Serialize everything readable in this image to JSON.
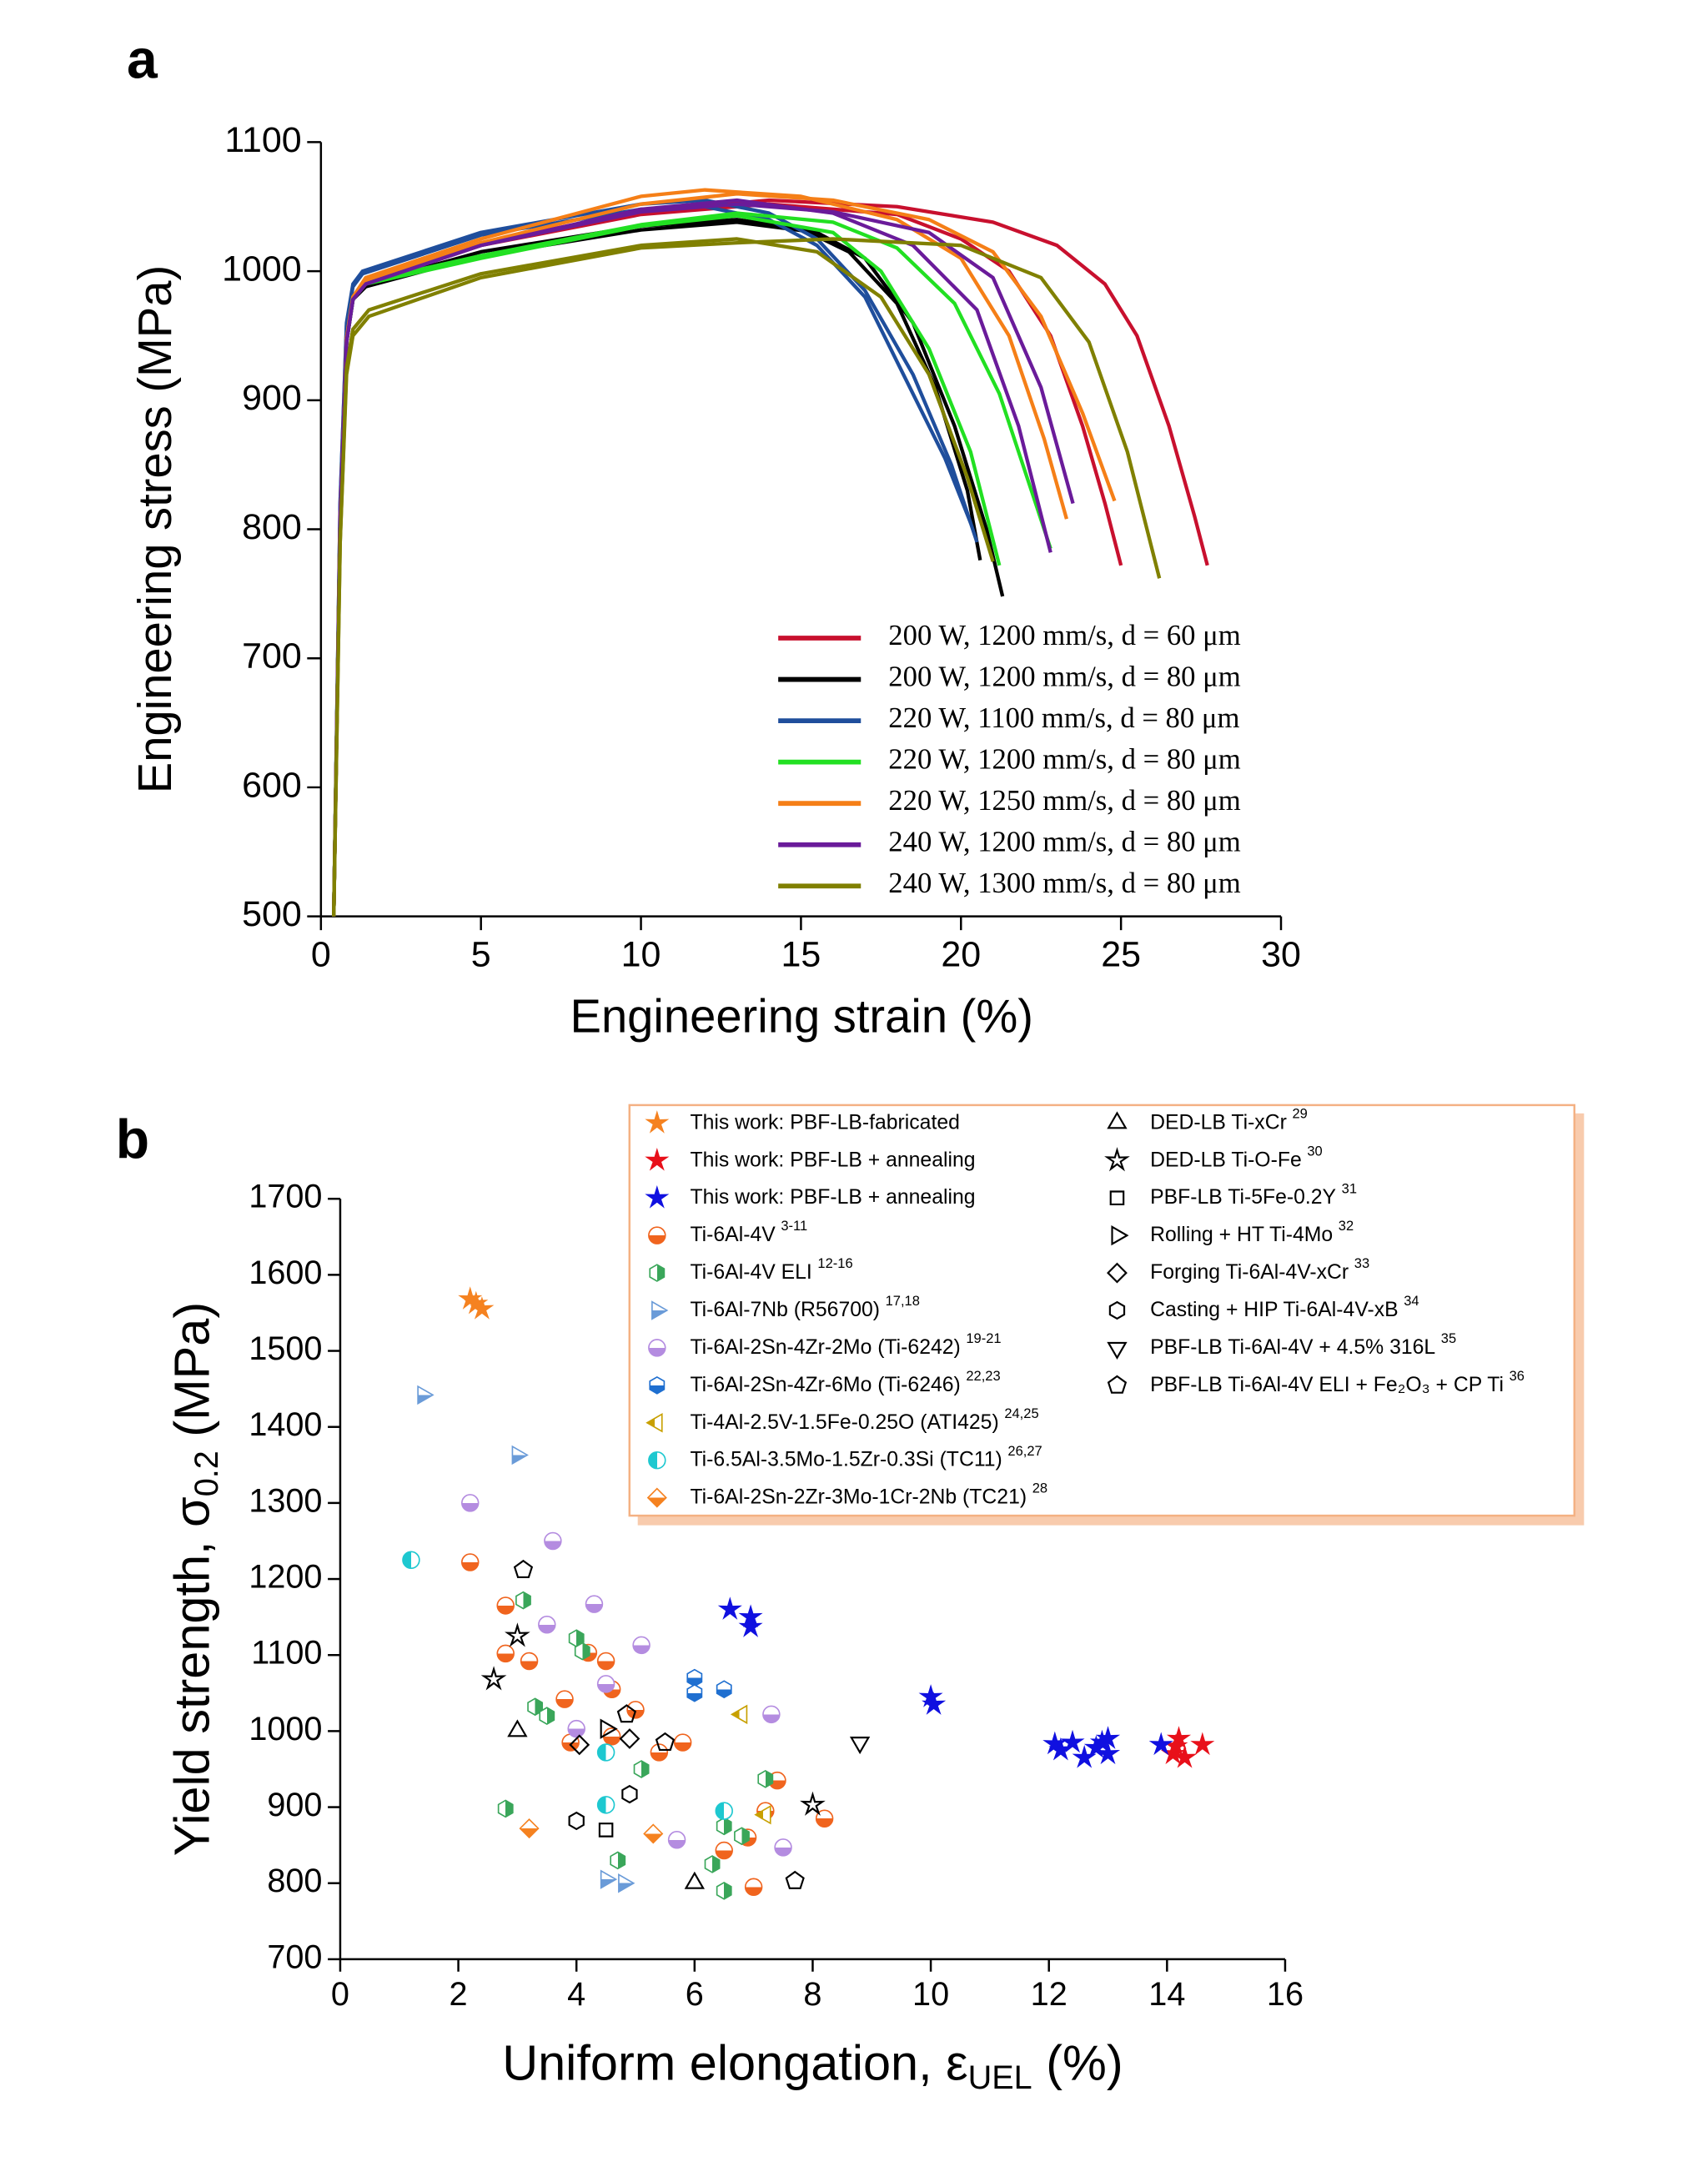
{
  "chart_data": [
    {
      "type": "line",
      "label": "a",
      "xlabel": "Engineering strain (%)",
      "ylabel": "Engineering stress (MPa)",
      "xlim": [
        0,
        30
      ],
      "ylim": [
        500,
        1100
      ],
      "xticks": [
        0,
        5,
        10,
        15,
        20,
        25,
        30
      ],
      "yticks": [
        500,
        600,
        700,
        800,
        900,
        1000,
        1100
      ],
      "series": [
        {
          "name": "200 W, 1200 mm/s, d = 60 μm",
          "color": "#c8102e",
          "curves": [
            {
              "x": [
                0.4,
                0.6,
                0.8,
                1.0,
                1.4,
                5,
                10,
                14,
                18,
                21,
                23,
                24.5,
                25.5,
                26.5,
                27.3,
                27.7
              ],
              "values": [
                500,
                810,
                945,
                978,
                992,
                1022,
                1046,
                1055,
                1050,
                1038,
                1020,
                990,
                950,
                880,
                810,
                772
              ]
            },
            {
              "x": [
                0.4,
                0.6,
                0.8,
                1.0,
                1.4,
                5,
                10,
                14,
                18,
                20,
                21.5,
                22.8,
                23.8,
                24.5,
                25.0
              ],
              "values": [
                500,
                810,
                945,
                978,
                990,
                1020,
                1044,
                1052,
                1044,
                1025,
                1000,
                950,
                880,
                820,
                772
              ]
            }
          ]
        },
        {
          "name": "200 W, 1200 mm/s, d = 80 μm",
          "color": "#000000",
          "curves": [
            {
              "x": [
                0.4,
                0.6,
                0.8,
                1.0,
                1.4,
                5,
                10,
                13,
                15,
                16.5,
                18,
                19.2,
                20.2,
                20.6
              ],
              "values": [
                500,
                810,
                945,
                978,
                990,
                1015,
                1035,
                1040,
                1033,
                1015,
                975,
                910,
                830,
                776
              ]
            },
            {
              "x": [
                0.4,
                0.6,
                0.8,
                1.0,
                1.4,
                5,
                10,
                13,
                15.5,
                17,
                18.5,
                19.8,
                20.8,
                21.3
              ],
              "values": [
                500,
                810,
                945,
                978,
                988,
                1012,
                1032,
                1038,
                1030,
                1010,
                960,
                880,
                800,
                748
              ]
            }
          ]
        },
        {
          "name": "220 W, 1100 mm/s, d = 80 μm",
          "color": "#1f4e9c",
          "curves": [
            {
              "x": [
                0.4,
                0.6,
                0.8,
                1.0,
                1.3,
                5,
                10,
                12,
                14,
                15.5,
                17,
                18.5,
                19.7,
                20.5
              ],
              "values": [
                500,
                820,
                960,
                990,
                1000,
                1030,
                1052,
                1055,
                1045,
                1025,
                985,
                920,
                850,
                790
              ]
            },
            {
              "x": [
                0.4,
                0.6,
                0.8,
                1.0,
                1.3,
                5,
                10,
                12,
                14,
                15.5,
                17,
                18.3,
                19.5,
                20.3
              ],
              "values": [
                500,
                820,
                958,
                988,
                998,
                1028,
                1048,
                1050,
                1040,
                1020,
                980,
                915,
                855,
                805
              ]
            }
          ]
        },
        {
          "name": "220 W, 1200 mm/s, d = 80 μm",
          "color": "#22e022",
          "curves": [
            {
              "x": [
                0.4,
                0.6,
                0.8,
                1.0,
                1.4,
                5,
                10,
                13,
                16,
                17.5,
                19,
                20.3,
                21.2
              ],
              "values": [
                500,
                810,
                945,
                978,
                990,
                1010,
                1035,
                1043,
                1030,
                1000,
                940,
                860,
                772
              ]
            },
            {
              "x": [
                0.4,
                0.6,
                0.8,
                1.0,
                1.4,
                5,
                10,
                13,
                16,
                18,
                19.8,
                21.2,
                22.2,
                22.8
              ],
              "values": [
                500,
                810,
                945,
                978,
                992,
                1012,
                1036,
                1045,
                1038,
                1018,
                975,
                905,
                830,
                785
              ]
            }
          ]
        },
        {
          "name": "220 W, 1250 mm/s, d = 80 μm",
          "color": "#f57f17",
          "curves": [
            {
              "x": [
                0.4,
                0.6,
                0.8,
                1.0,
                1.4,
                5,
                10,
                12,
                15,
                18,
                20,
                21.5,
                22.6,
                23.3
              ],
              "values": [
                500,
                810,
                948,
                980,
                995,
                1025,
                1058,
                1063,
                1058,
                1040,
                1010,
                950,
                870,
                808
              ]
            },
            {
              "x": [
                0.4,
                0.6,
                0.8,
                1.0,
                1.4,
                5,
                10,
                13,
                16,
                19,
                21,
                22.5,
                23.8,
                24.8
              ],
              "values": [
                500,
                810,
                948,
                980,
                993,
                1022,
                1052,
                1060,
                1055,
                1040,
                1015,
                965,
                890,
                822
              ]
            }
          ]
        },
        {
          "name": "240 W, 1200 mm/s, d = 80 μm",
          "color": "#6a1b9a",
          "curves": [
            {
              "x": [
                0.4,
                0.6,
                0.8,
                1.0,
                1.4,
                5,
                10,
                13,
                16,
                18.5,
                20.5,
                21.8,
                22.8
              ],
              "values": [
                500,
                810,
                945,
                978,
                990,
                1020,
                1048,
                1055,
                1045,
                1020,
                970,
                880,
                782
              ]
            },
            {
              "x": [
                0.4,
                0.6,
                0.8,
                1.0,
                1.4,
                5,
                10,
                13,
                16,
                19,
                21,
                22.5,
                23.5
              ],
              "values": [
                500,
                810,
                945,
                978,
                990,
                1020,
                1046,
                1052,
                1046,
                1030,
                995,
                910,
                820
              ]
            }
          ]
        },
        {
          "name": "240 W, 1300 mm/s, d = 80 μm",
          "color": "#808000",
          "curves": [
            {
              "x": [
                0.4,
                0.6,
                0.8,
                1.0,
                1.5,
                5,
                10,
                13,
                16,
                20,
                22.5,
                24,
                25.2,
                26.2
              ],
              "values": [
                500,
                790,
                920,
                950,
                965,
                995,
                1018,
                1022,
                1025,
                1020,
                995,
                945,
                860,
                762
              ]
            },
            {
              "x": [
                0.4,
                0.6,
                0.8,
                1.0,
                1.5,
                5,
                10,
                13,
                15.5,
                17.5,
                19,
                20.2,
                21.0
              ],
              "values": [
                500,
                790,
                925,
                955,
                970,
                998,
                1020,
                1025,
                1015,
                980,
                920,
                840,
                775
              ]
            }
          ]
        }
      ]
    },
    {
      "type": "scatter",
      "label": "b",
      "xlabel": [
        "Uniform elongation, ε",
        "UEL",
        " (%)"
      ],
      "ylabel": [
        "Yield strength, σ",
        "0.2",
        " (MPa)"
      ],
      "xlim": [
        0,
        16
      ],
      "ylim": [
        700,
        1700
      ],
      "xticks": [
        0,
        2,
        4,
        6,
        8,
        10,
        12,
        14,
        16
      ],
      "yticks": [
        700,
        800,
        900,
        1000,
        1100,
        1200,
        1300,
        1400,
        1500,
        1600,
        1700
      ],
      "series": [
        {
          "name": "This work: PBF-LB-fabricated",
          "color": "#f58220",
          "marker": "star",
          "fill": "full",
          "x": [
            2.2,
            2.4,
            2.3
          ],
          "values": [
            1568,
            1555,
            1562
          ]
        },
        {
          "name": "This work: PBF-LB + annealing",
          "color": "#e8101a",
          "marker": "star",
          "fill": "full",
          "x": [
            14.2,
            14.1,
            14.3,
            14.6,
            14.15
          ],
          "values": [
            990,
            970,
            965,
            982,
            980
          ]
        },
        {
          "name": "This work: PBF-LB + annealing",
          "color": "#1010e0",
          "marker": "star",
          "fill": "full",
          "x": [
            12.1,
            12.2,
            12.4,
            12.6,
            12.8,
            13.0,
            13.0,
            12.9,
            13.9,
            10.0,
            10.05,
            6.6,
            6.95,
            6.95
          ],
          "values": [
            983,
            975,
            985,
            965,
            978,
            990,
            970,
            985,
            982,
            1045,
            1035,
            1160,
            1150,
            1137
          ]
        },
        {
          "name": "Ti-6Al-4V",
          "ref": "3-11",
          "color": "#f0641e",
          "marker": "circle",
          "fill": "half-bottom",
          "x": [
            2.2,
            2.8,
            2.8,
            3.2,
            3.8,
            3.9,
            4.2,
            4.5,
            4.6,
            4.6,
            5.0,
            5.4,
            5.8,
            6.5,
            6.9,
            7.0,
            7.2,
            7.4,
            8.2
          ],
          "values": [
            1222,
            1165,
            1102,
            1092,
            1042,
            985,
            1103,
            1092,
            1055,
            993,
            1028,
            972,
            985,
            843,
            860,
            795,
            895,
            935,
            885
          ]
        },
        {
          "name": "Ti-6Al-4V ELI",
          "ref": "12-16",
          "color": "#3aa65a",
          "marker": "hexagon",
          "fill": "half-right",
          "x": [
            3.1,
            3.3,
            3.5,
            4.0,
            4.1,
            2.8,
            4.7,
            5.1,
            6.3,
            6.5,
            6.5,
            6.8,
            7.2
          ],
          "values": [
            1172,
            1032,
            1020,
            1122,
            1105,
            898,
            830,
            950,
            825,
            875,
            790,
            862,
            937
          ]
        },
        {
          "name": "Ti-6Al-7Nb (R56700)",
          "ref": "17,18",
          "color": "#6a9bd8",
          "marker": "tri-right",
          "fill": "half-bottom",
          "x": [
            1.4,
            3.0,
            4.5,
            4.8
          ],
          "values": [
            1442,
            1363,
            805,
            800
          ]
        },
        {
          "name": "Ti-6Al-2Sn-4Zr-2Mo (Ti-6242)",
          "ref": "19-21",
          "color": "#b48ce0",
          "marker": "circle",
          "fill": "half-bottom",
          "x": [
            2.2,
            3.6,
            3.5,
            4.3,
            4.5,
            4.0,
            5.1,
            5.7,
            7.3,
            7.5
          ],
          "values": [
            1300,
            1250,
            1140,
            1167,
            1062,
            1003,
            1113,
            857,
            1022,
            847
          ]
        },
        {
          "name": "Ti-6Al-2Sn-4Zr-6Mo (Ti-6246)",
          "ref": "22,23",
          "color": "#1f6fd0",
          "marker": "hexagon",
          "fill": "half-bottom",
          "x": [
            6.0,
            6.0,
            6.5
          ],
          "values": [
            1070,
            1050,
            1055
          ]
        },
        {
          "name": "Ti-4Al-2.5V-1.5Fe-0.25O (ATI425)",
          "ref": "24,25",
          "color": "#c8a000",
          "marker": "tri-left",
          "fill": "half-left",
          "x": [
            6.8,
            7.2
          ],
          "values": [
            1022,
            890
          ]
        },
        {
          "name": "Ti-6.5Al-3.5Mo-1.5Zr-0.3Si (TC11)",
          "ref": "26,27",
          "color": "#1ec8d0",
          "marker": "circle",
          "fill": "half-left",
          "x": [
            1.2,
            4.5,
            4.5,
            6.5
          ],
          "values": [
            1225,
            972,
            903,
            895
          ]
        },
        {
          "name": "Ti-6Al-2Sn-2Zr-3Mo-1Cr-2Nb (TC21)",
          "ref": "28",
          "color": "#f58220",
          "marker": "diamond",
          "fill": "half-bottom",
          "x": [
            3.2,
            5.3
          ],
          "values": [
            872,
            865
          ]
        },
        {
          "name": "DED-LB Ti-xCr",
          "ref": "29",
          "color": "#000000",
          "marker": "tri-up",
          "fill": "none",
          "x": [
            3.0,
            6.0
          ],
          "values": [
            1000,
            800
          ]
        },
        {
          "name": "DED-LB Ti-O-Fe",
          "ref": "30",
          "color": "#000000",
          "marker": "star",
          "fill": "none",
          "x": [
            2.6,
            3.0,
            8.0
          ],
          "values": [
            1068,
            1125,
            903
          ]
        },
        {
          "name": "PBF-LB Ti-5Fe-0.2Y",
          "ref": "31",
          "color": "#000000",
          "marker": "square",
          "fill": "none",
          "x": [
            4.5
          ],
          "values": [
            870
          ]
        },
        {
          "name": "Rolling + HT Ti-4Mo",
          "ref": "32",
          "color": "#000000",
          "marker": "tri-right",
          "fill": "none",
          "x": [
            4.5
          ],
          "values": [
            1003
          ]
        },
        {
          "name": "Forging Ti-6Al-4V-xCr",
          "ref": "33",
          "color": "#000000",
          "marker": "diamond",
          "fill": "none",
          "x": [
            4.05,
            4.9
          ],
          "values": [
            982,
            990
          ]
        },
        {
          "name": "Casting + HIP Ti-6Al-4V-xB",
          "ref": "34",
          "color": "#000000",
          "marker": "hexagon",
          "fill": "none",
          "x": [
            4.0,
            4.9
          ],
          "values": [
            882,
            917
          ]
        },
        {
          "name": "PBF-LB Ti-6Al-4V + 4.5% 316L",
          "ref": "35",
          "color": "#000000",
          "marker": "tri-down",
          "fill": "none",
          "x": [
            8.8
          ],
          "values": [
            985
          ]
        },
        {
          "name": "PBF-LB Ti-6Al-4V ELI + Fe₂O₃ + CP Ti",
          "ref": "36",
          "color": "#000000",
          "marker": "pentagon",
          "fill": "none",
          "x": [
            3.1,
            4.85,
            5.5,
            7.7
          ],
          "values": [
            1212,
            1022,
            985,
            803
          ]
        }
      ]
    }
  ]
}
